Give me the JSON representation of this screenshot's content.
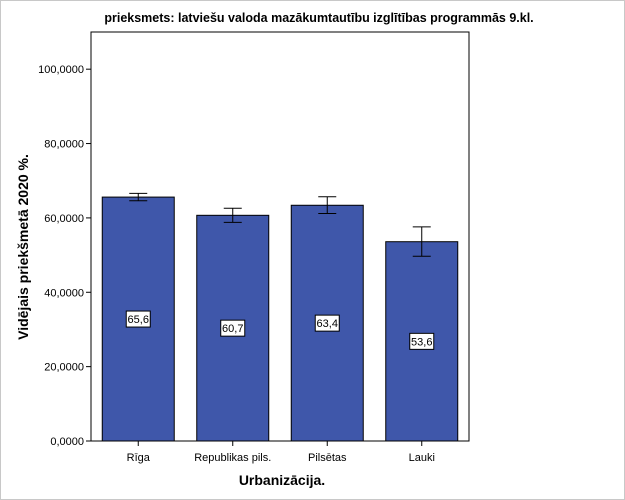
{
  "chart_data": {
    "type": "bar",
    "title": "prieksmets: latviešu valoda mazākumtautību izglītības programmās 9.kl.",
    "xlabel": "Urbanizācija.",
    "ylabel": "Vidējais priekšmetā 2020 %.",
    "categories": [
      "Rīga",
      "Republikas pils.",
      "Pilsētas",
      "Lauki"
    ],
    "values": [
      65.6,
      60.7,
      63.4,
      53.6
    ],
    "data_labels": [
      "65,6",
      "60,7",
      "63,4",
      "53,6"
    ],
    "error_low": [
      64.6,
      58.8,
      61.2,
      49.7
    ],
    "error_high": [
      66.6,
      62.6,
      65.7,
      57.6
    ],
    "ylim": [
      0,
      110
    ],
    "yticks": [
      0,
      20,
      40,
      60,
      80,
      100
    ],
    "ytick_labels": [
      "0,0000",
      "20,0000",
      "40,0000",
      "60,0000",
      "80,0000",
      "100,0000"
    ],
    "grid": false,
    "legend": "none",
    "bar_color": "#3f57aa",
    "bar_edge_color": "#000000"
  }
}
